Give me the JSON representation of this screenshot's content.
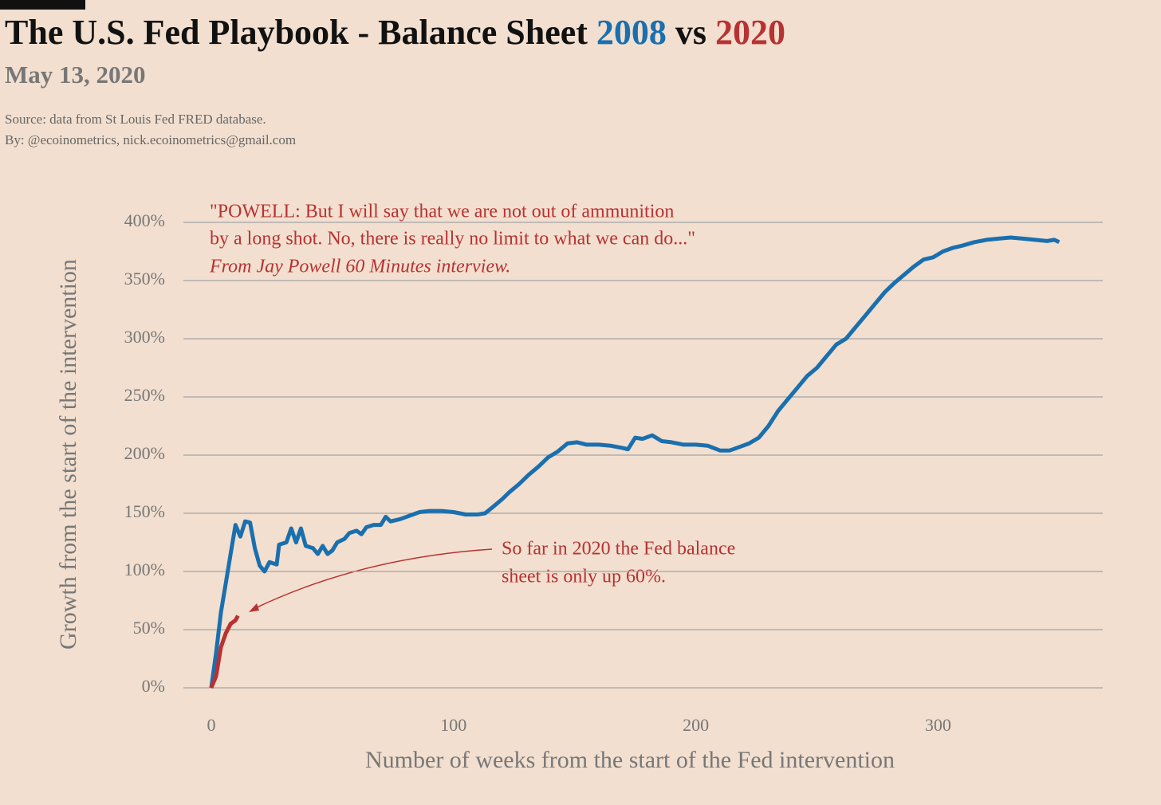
{
  "chart_data": {
    "type": "line",
    "title": {
      "prefix": "The U.S. Fed Playbook - Balance Sheet",
      "first": "2008",
      "middle": "vs",
      "second": "2020"
    },
    "subtitle": "May 13, 2020",
    "source": "Source: data from  St Louis Fed FRED database.",
    "byline": "By: @ecoinometrics, nick.ecoinometrics@gmail.com",
    "annotations": [
      "\"POWELL: But I will say that we are not out of ammunition",
      "by a long shot. No, there is really no limit to what we can do...\"",
      "From Jay Powell 60 Minutes interview.",
      "So far in 2020 the Fed balance",
      "sheet is only up 60%."
    ],
    "xlabel": "Number of weeks from the start of the Fed intervention",
    "ylabel": "Growth from the start of the intervention",
    "xlim": [
      -11.5,
      368
    ],
    "xticks": [
      0,
      100,
      200,
      300
    ],
    "ylim": [
      0,
      400
    ],
    "yticks": [
      {
        "value": 0,
        "label": "0%"
      },
      {
        "value": 50,
        "label": "50%"
      },
      {
        "value": 100,
        "label": "100%"
      },
      {
        "value": 150,
        "label": "150%"
      },
      {
        "value": 200,
        "label": "200%"
      },
      {
        "value": 250,
        "label": "250%"
      },
      {
        "value": 300,
        "label": "300%"
      },
      {
        "value": 350,
        "label": "350%"
      },
      {
        "value": 400,
        "label": "400%"
      }
    ],
    "grid": true,
    "series": [
      {
        "name": "2008",
        "color": "#1a6fae",
        "x": [
          0,
          2,
          4,
          6,
          8,
          10,
          12,
          14,
          16,
          18,
          20,
          22,
          24,
          27,
          28,
          31,
          33,
          35,
          37,
          39,
          42,
          44,
          46,
          48,
          50,
          52,
          55,
          57,
          60,
          62,
          64,
          67,
          70,
          72,
          74,
          78,
          82,
          86,
          90,
          95,
          100,
          105,
          110,
          113,
          116,
          120,
          123,
          127,
          131,
          135,
          139,
          143,
          147,
          151,
          155,
          160,
          165,
          170,
          172,
          175,
          178,
          182,
          186,
          190,
          195,
          200,
          205,
          210,
          214,
          218,
          222,
          226,
          230,
          234,
          238,
          242,
          246,
          250,
          254,
          258,
          262,
          266,
          270,
          274,
          278,
          282,
          286,
          290,
          294,
          298,
          302,
          306,
          310,
          315,
          320,
          325,
          330,
          335,
          340,
          345,
          348,
          350
        ],
        "values": [
          0,
          30,
          65,
          90,
          115,
          140,
          130,
          143,
          142,
          120,
          105,
          100,
          108,
          106,
          123,
          125,
          137,
          125,
          137,
          122,
          120,
          115,
          122,
          115,
          118,
          125,
          128,
          133,
          135,
          132,
          138,
          140,
          140,
          147,
          143,
          145,
          148,
          151,
          152,
          152,
          151,
          149,
          149,
          150,
          155,
          162,
          168,
          175,
          183,
          190,
          198,
          203,
          210,
          211,
          209,
          209,
          208,
          206,
          205,
          215,
          214,
          217,
          212,
          211,
          209,
          209,
          208,
          204,
          204,
          207,
          210,
          215,
          225,
          238,
          248,
          258,
          268,
          275,
          285,
          295,
          300,
          310,
          320,
          330,
          340,
          348,
          355,
          362,
          368,
          370,
          375,
          378,
          380,
          383,
          385,
          386,
          387,
          386,
          385,
          384,
          385,
          383
        ]
      },
      {
        "name": "2020",
        "color": "#b83232",
        "x": [
          0,
          2,
          4,
          6,
          8,
          10,
          11
        ],
        "values": [
          0,
          10,
          35,
          47,
          55,
          58,
          62
        ]
      }
    ]
  }
}
